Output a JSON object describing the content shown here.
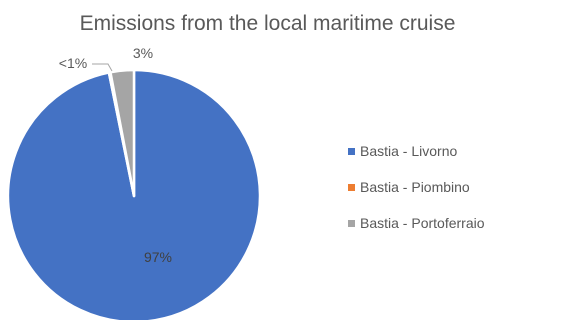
{
  "colors": {
    "series_1": "#4472C4",
    "series_2": "#ED7D31",
    "series_3": "#A5A5A5",
    "text": "#595959",
    "inside_label": "#404040"
  },
  "chart_data": {
    "type": "pie",
    "title": "Emissions from the local maritime cruise",
    "categories": [
      "Bastia - Livorno",
      "Bastia - Piombino",
      "Bastia - Portoferraio"
    ],
    "values": [
      97,
      0.2,
      3
    ],
    "data_labels": [
      "97%",
      "<1%",
      "3%"
    ],
    "legend_position": "right",
    "grid": false
  }
}
